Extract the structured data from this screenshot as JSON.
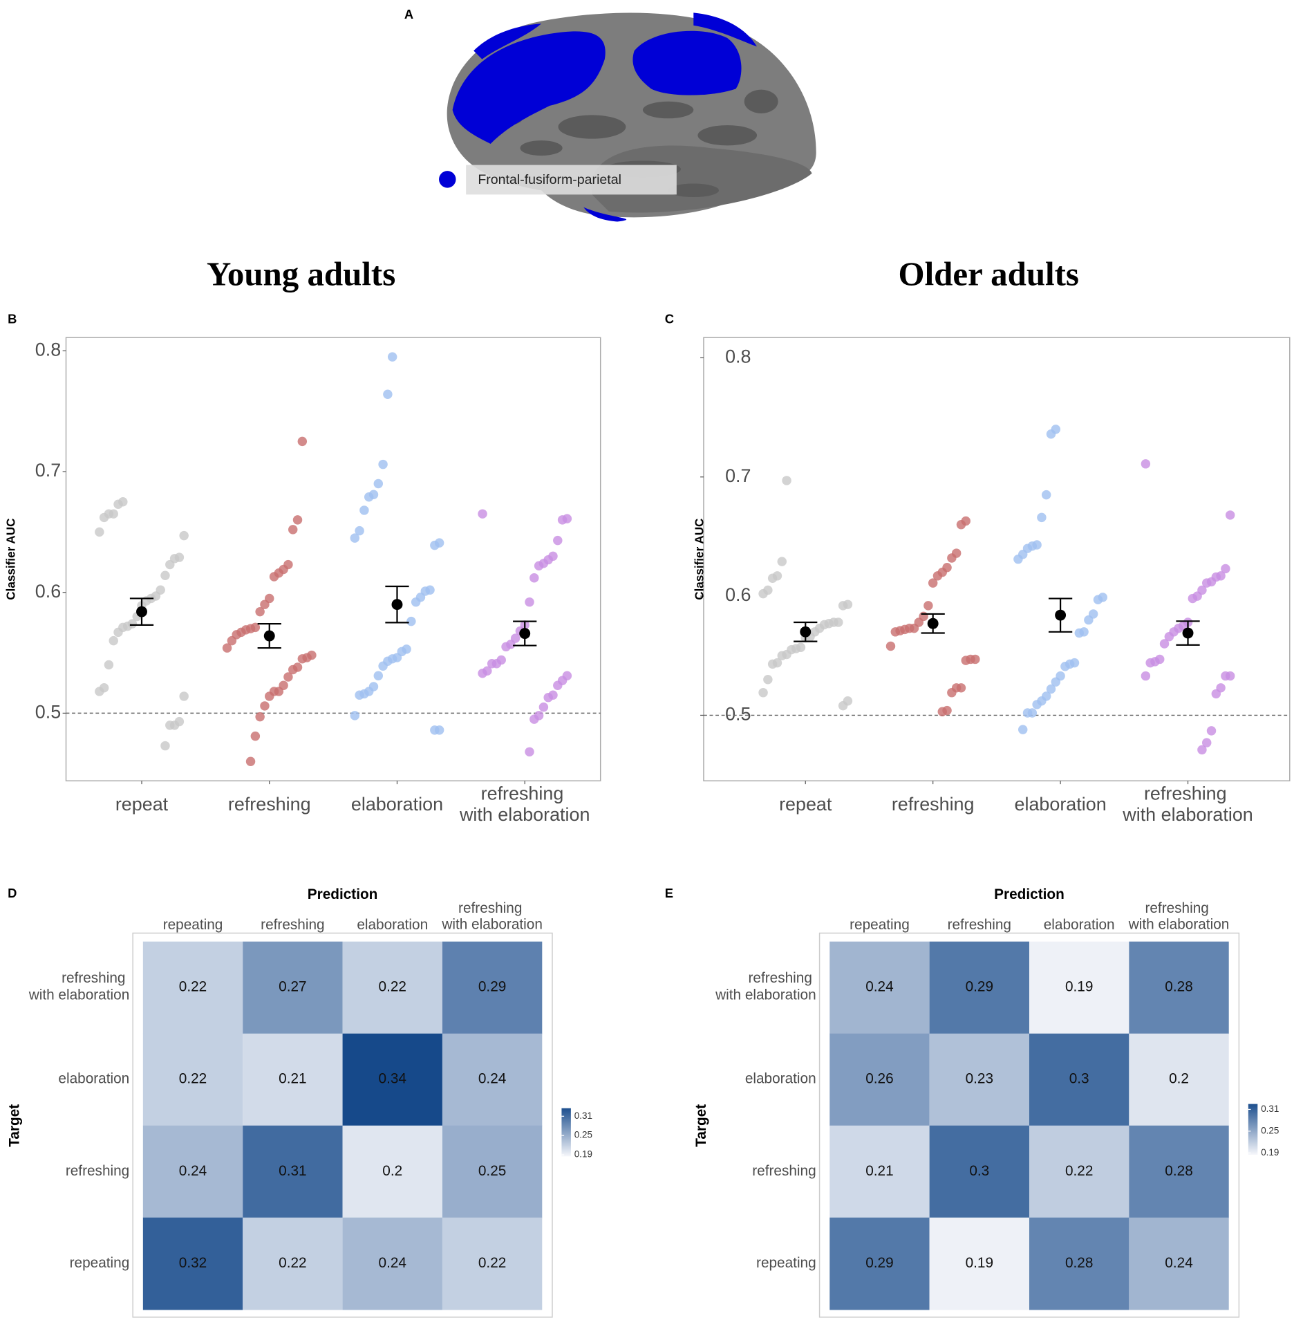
{
  "figure": {
    "panel_labels": [
      "A",
      "B",
      "C",
      "D",
      "E"
    ],
    "group_titles": [
      "Young adults",
      "Older adults"
    ],
    "brain_legend": "Frontal-fusiform-parietal"
  },
  "chart_data": [
    {
      "type": "strip",
      "y_label": "Classifier AUC",
      "categories": [
        "repeat",
        "refreshing",
        "elaboration",
        "refreshing with elaboration"
      ],
      "colors": [
        "#c8c8c8",
        "#c86e6e",
        "#9fbff0",
        "#c88de2"
      ],
      "values": [
        [
          0.675,
          0.673,
          0.665,
          0.665,
          0.662,
          0.65,
          0.647,
          0.629,
          0.628,
          0.623,
          0.614,
          0.602,
          0.597,
          0.595,
          0.593,
          0.589,
          0.58,
          0.574,
          0.572,
          0.571,
          0.567,
          0.56,
          0.54,
          0.521,
          0.518,
          0.514,
          0.493,
          0.49,
          0.49,
          0.473
        ],
        [
          0.725,
          0.66,
          0.652,
          0.623,
          0.619,
          0.616,
          0.613,
          0.595,
          0.59,
          0.584,
          0.571,
          0.57,
          0.569,
          0.567,
          0.565,
          0.56,
          0.554,
          0.548,
          0.546,
          0.545,
          0.538,
          0.536,
          0.53,
          0.523,
          0.518,
          0.518,
          0.514,
          0.506,
          0.497,
          0.481,
          0.46
        ],
        [
          0.795,
          0.764,
          0.706,
          0.69,
          0.681,
          0.679,
          0.668,
          0.651,
          0.645,
          0.641,
          0.639,
          0.602,
          0.601,
          0.596,
          0.592,
          0.576,
          0.553,
          0.551,
          0.546,
          0.545,
          0.543,
          0.539,
          0.531,
          0.522,
          0.518,
          0.516,
          0.515,
          0.498,
          0.486,
          0.486
        ],
        [
          0.665,
          0.661,
          0.66,
          0.643,
          0.63,
          0.627,
          0.624,
          0.622,
          0.612,
          0.592,
          0.573,
          0.568,
          0.562,
          0.557,
          0.555,
          0.544,
          0.541,
          0.541,
          0.535,
          0.533,
          0.531,
          0.527,
          0.523,
          0.515,
          0.513,
          0.505,
          0.498,
          0.495,
          0.468
        ]
      ],
      "means": [
        0.584,
        0.564,
        0.59,
        0.566
      ],
      "errors": [
        0.011,
        0.01,
        0.015,
        0.01
      ],
      "hline": 0.5,
      "ylim": [
        0.444,
        0.811
      ],
      "yticks": [
        0.5,
        0.6,
        0.7,
        0.8
      ]
    },
    {
      "type": "strip",
      "y_label": "Classifier AUC",
      "categories": [
        "repeat",
        "refreshing",
        "elaboration",
        "refreshing with elaboration"
      ],
      "colors": [
        "#c8c8c8",
        "#c86e6e",
        "#9fbff0",
        "#c88de2"
      ],
      "values": [
        [
          0.697,
          0.629,
          0.617,
          0.615,
          0.605,
          0.602,
          0.593,
          0.592,
          0.578,
          0.578,
          0.577,
          0.576,
          0.573,
          0.57,
          0.566,
          0.565,
          0.557,
          0.556,
          0.555,
          0.551,
          0.55,
          0.544,
          0.543,
          0.53,
          0.519,
          0.512,
          0.508
        ],
        [
          0.663,
          0.66,
          0.636,
          0.632,
          0.624,
          0.62,
          0.617,
          0.611,
          0.592,
          0.583,
          0.578,
          0.573,
          0.573,
          0.572,
          0.571,
          0.57,
          0.558,
          0.547,
          0.547,
          0.546,
          0.523,
          0.523,
          0.519,
          0.504,
          0.503
        ],
        [
          0.74,
          0.736,
          0.685,
          0.666,
          0.643,
          0.642,
          0.64,
          0.635,
          0.631,
          0.599,
          0.597,
          0.585,
          0.58,
          0.57,
          0.569,
          0.544,
          0.543,
          0.541,
          0.533,
          0.528,
          0.522,
          0.516,
          0.512,
          0.509,
          0.502,
          0.502,
          0.488
        ],
        [
          0.711,
          0.668,
          0.623,
          0.617,
          0.616,
          0.612,
          0.611,
          0.605,
          0.6,
          0.598,
          0.578,
          0.575,
          0.573,
          0.57,
          0.566,
          0.56,
          0.547,
          0.545,
          0.544,
          0.533,
          0.533,
          0.533,
          0.523,
          0.518,
          0.487,
          0.477,
          0.471
        ]
      ],
      "means": [
        0.57,
        0.577,
        0.584,
        0.569
      ],
      "errors": [
        0.008,
        0.008,
        0.014,
        0.01
      ],
      "hline": 0.5,
      "ylim": [
        0.445,
        0.817
      ],
      "yticks": [
        0.5,
        0.6,
        0.7,
        0.8
      ]
    },
    {
      "type": "heatmap",
      "x_label": "Prediction",
      "y_label": "Target",
      "x_categories": [
        "repeating",
        "refreshing",
        "elaboration",
        "refreshing with elaboration"
      ],
      "y_categories": [
        "refreshing with elaboration",
        "elaboration",
        "refreshing",
        "repeating"
      ],
      "values": [
        [
          0.22,
          0.27,
          0.22,
          0.29
        ],
        [
          0.22,
          0.21,
          0.34,
          0.24
        ],
        [
          0.24,
          0.31,
          0.2,
          0.25
        ],
        [
          0.32,
          0.22,
          0.24,
          0.22
        ]
      ],
      "colors": [
        "#f6f7fb",
        "#1d4f8e"
      ],
      "clim": [
        0.185,
        0.335
      ],
      "colorbar_ticks": [
        0.19,
        0.25,
        0.31
      ]
    },
    {
      "type": "heatmap",
      "x_label": "Prediction",
      "y_label": "Target",
      "x_categories": [
        "repeating",
        "refreshing",
        "elaboration",
        "refreshing with elaboration"
      ],
      "y_categories": [
        "refreshing with elaboration",
        "elaboration",
        "refreshing",
        "repeating"
      ],
      "values": [
        [
          0.24,
          0.29,
          0.19,
          0.28
        ],
        [
          0.26,
          0.23,
          0.3,
          0.2
        ],
        [
          0.21,
          0.3,
          0.22,
          0.28
        ],
        [
          0.29,
          0.19,
          0.28,
          0.24
        ]
      ],
      "colors": [
        "#f6f7fb",
        "#1d4f8e"
      ],
      "clim": [
        0.185,
        0.325
      ],
      "colorbar_ticks": [
        0.19,
        0.25,
        0.31
      ]
    }
  ]
}
